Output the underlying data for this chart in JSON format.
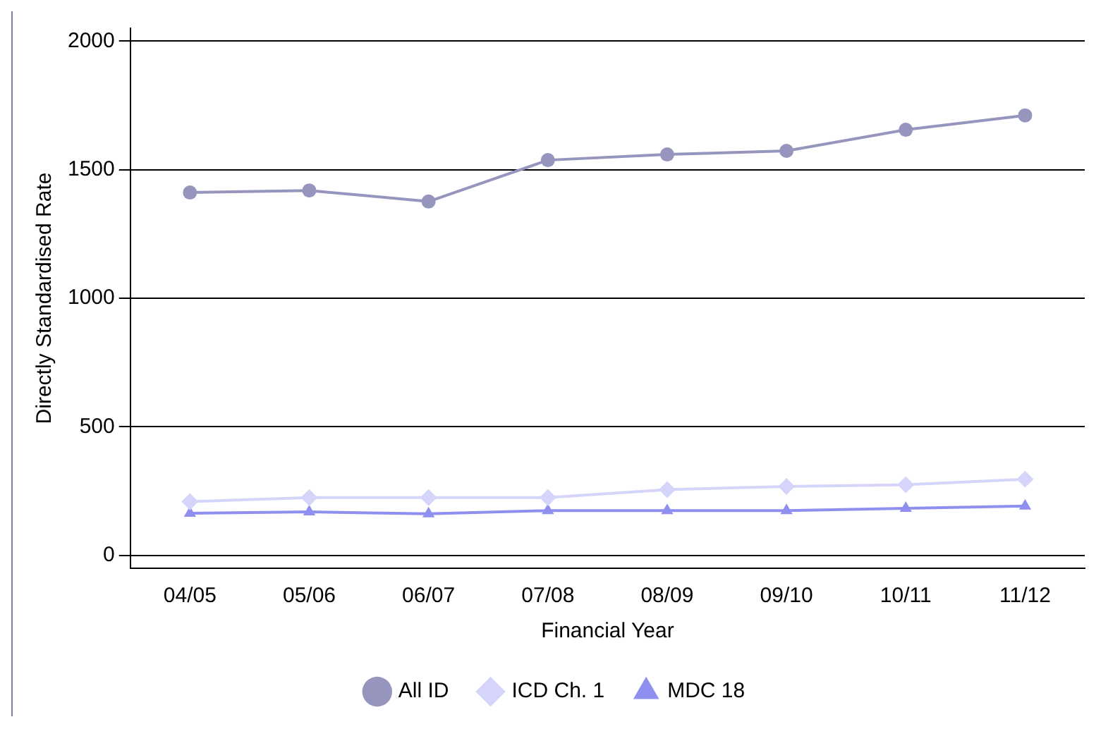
{
  "chart_data": {
    "type": "line",
    "xlabel": "Financial Year",
    "ylabel": "Directly Standardised Rate",
    "categories": [
      "04/05",
      "05/06",
      "06/07",
      "07/08",
      "08/09",
      "09/10",
      "10/11",
      "11/12"
    ],
    "series": [
      {
        "name": "All ID",
        "color": "#9595be",
        "marker": "circle",
        "values": [
          1411,
          1419,
          1376,
          1537,
          1559,
          1573,
          1655,
          1711
        ]
      },
      {
        "name": "ICD Ch. 1",
        "color": "#d5d5fb",
        "marker": "diamond",
        "values": [
          209,
          225,
          225,
          225,
          256,
          268,
          275,
          296
        ]
      },
      {
        "name": "MDC 18",
        "color": "#8f8fef",
        "marker": "triangle",
        "values": [
          164,
          169,
          162,
          174,
          174,
          174,
          183,
          192
        ]
      }
    ],
    "ylim": [
      -50,
      2050
    ],
    "yticks": [
      0,
      500,
      1000,
      1500,
      2000
    ],
    "grid": "y",
    "legend": "bottom"
  }
}
